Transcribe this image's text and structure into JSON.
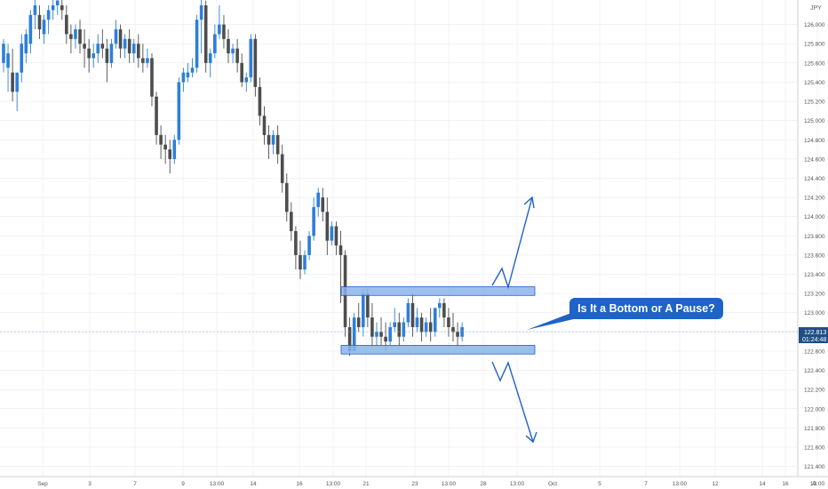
{
  "currency": "JPY",
  "callout": {
    "text": "Is It a Bottom or A Pause?"
  },
  "price_tag": {
    "price": "122.813",
    "countdown": "01:24:48"
  },
  "footer": {
    "axis_label": "A"
  },
  "colors": {
    "up": "#2d7fd8",
    "down": "#4d4d4d",
    "band_fill": "#8cb4ea",
    "band_border": "#1e5fc8",
    "arrow": "#1e63c6",
    "axis_text": "#555555",
    "grid": "#e6e6e6",
    "tag_bg": "#1f4f86"
  },
  "chart_data": {
    "type": "candlestick",
    "title": "",
    "ylim": [
      121.35,
      126.2
    ],
    "y_ticks": [
      "126.000",
      "125.800",
      "125.600",
      "125.400",
      "125.200",
      "125.000",
      "124.800",
      "124.600",
      "124.400",
      "124.200",
      "124.000",
      "123.800",
      "123.600",
      "123.400",
      "123.200",
      "123.000",
      "122.800",
      "122.600",
      "122.400",
      "122.200",
      "122.000",
      "121.800",
      "121.600",
      "121.400"
    ],
    "x_ticks": [
      "Sep",
      "3",
      "7",
      "9",
      "13:00",
      "14",
      "16",
      "13:00",
      "21",
      "23",
      "13:00",
      "28",
      "13:00",
      "Oct",
      "5",
      "7",
      "13:00",
      "12",
      "14",
      "16",
      "13:00"
    ],
    "candles": [
      [
        125.6,
        125.85,
        125.8,
        125.5
      ],
      [
        125.55,
        125.8,
        125.7,
        125.3
      ],
      [
        125.5,
        125.75,
        125.3,
        125.2
      ],
      [
        125.3,
        125.4,
        125.5,
        125.1
      ],
      [
        125.5,
        125.9,
        125.8,
        125.4
      ],
      [
        125.7,
        125.95,
        125.9,
        125.6
      ],
      [
        125.8,
        126.15,
        126.1,
        125.7
      ],
      [
        126.1,
        126.3,
        126.2,
        125.95
      ],
      [
        126.1,
        126.2,
        125.95,
        125.85
      ],
      [
        125.9,
        126.1,
        126.05,
        125.8
      ],
      [
        126.05,
        126.2,
        126.15,
        125.9
      ],
      [
        126.15,
        126.3,
        126.2,
        126.05
      ],
      [
        126.2,
        126.3,
        126.25,
        126.1
      ],
      [
        126.2,
        126.3,
        126.15,
        126.05
      ],
      [
        126.1,
        126.2,
        125.9,
        125.8
      ],
      [
        125.9,
        126.0,
        125.85,
        125.7
      ],
      [
        125.85,
        126.0,
        125.95,
        125.75
      ],
      [
        125.95,
        126.05,
        125.8,
        125.7
      ],
      [
        125.8,
        125.95,
        125.75,
        125.55
      ],
      [
        125.75,
        125.85,
        125.65,
        125.5
      ],
      [
        125.65,
        125.8,
        125.7,
        125.55
      ],
      [
        125.7,
        125.9,
        125.8,
        125.6
      ],
      [
        125.8,
        125.95,
        125.75,
        125.65
      ],
      [
        125.75,
        125.85,
        125.6,
        125.4
      ],
      [
        125.6,
        125.85,
        125.8,
        125.55
      ],
      [
        125.8,
        126.05,
        125.95,
        125.75
      ],
      [
        125.95,
        126.0,
        125.75,
        125.65
      ],
      [
        125.75,
        125.9,
        125.85,
        125.65
      ],
      [
        125.85,
        125.95,
        125.7,
        125.6
      ],
      [
        125.7,
        125.85,
        125.8,
        125.6
      ],
      [
        125.8,
        125.9,
        125.65,
        125.55
      ],
      [
        125.65,
        125.8,
        125.6,
        125.5
      ],
      [
        125.6,
        125.75,
        125.65,
        125.55
      ],
      [
        125.65,
        125.7,
        125.25,
        125.15
      ],
      [
        125.25,
        125.3,
        124.85,
        124.75
      ],
      [
        124.85,
        124.95,
        124.75,
        124.6
      ],
      [
        124.75,
        124.85,
        124.7,
        124.55
      ],
      [
        124.7,
        124.8,
        124.6,
        124.45
      ],
      [
        124.6,
        124.85,
        124.8,
        124.55
      ],
      [
        124.8,
        125.45,
        125.4,
        124.75
      ],
      [
        125.4,
        125.55,
        125.5,
        125.3
      ],
      [
        125.45,
        125.6,
        125.5,
        125.4
      ],
      [
        125.5,
        125.65,
        125.55,
        125.45
      ],
      [
        125.55,
        126.1,
        126.05,
        125.5
      ],
      [
        126.05,
        126.3,
        126.2,
        125.7
      ],
      [
        126.2,
        126.25,
        125.6,
        125.5
      ],
      [
        125.6,
        125.75,
        125.7,
        125.45
      ],
      [
        125.7,
        126.0,
        125.9,
        125.65
      ],
      [
        125.9,
        126.2,
        126.0,
        125.85
      ],
      [
        126.0,
        126.1,
        125.85,
        125.75
      ],
      [
        125.85,
        125.95,
        125.7,
        125.6
      ],
      [
        125.7,
        125.8,
        125.75,
        125.6
      ],
      [
        125.75,
        125.85,
        125.6,
        125.5
      ],
      [
        125.6,
        125.7,
        125.4,
        125.35
      ],
      [
        125.4,
        125.5,
        125.45,
        125.3
      ],
      [
        125.45,
        125.9,
        125.85,
        125.4
      ],
      [
        125.85,
        125.9,
        125.35,
        125.25
      ],
      [
        125.35,
        125.45,
        125.05,
        124.95
      ],
      [
        125.05,
        125.15,
        124.85,
        124.75
      ],
      [
        124.85,
        124.95,
        124.75,
        124.6
      ],
      [
        124.75,
        124.9,
        124.85,
        124.65
      ],
      [
        124.85,
        124.95,
        124.65,
        124.55
      ],
      [
        124.65,
        124.75,
        124.35,
        124.25
      ],
      [
        124.35,
        124.45,
        124.05,
        123.95
      ],
      [
        124.05,
        124.15,
        123.85,
        123.75
      ],
      [
        123.85,
        123.9,
        123.6,
        123.45
      ],
      [
        123.6,
        123.75,
        123.45,
        123.35
      ],
      [
        123.45,
        123.65,
        123.6,
        123.4
      ],
      [
        123.6,
        123.85,
        123.8,
        123.55
      ],
      [
        123.8,
        124.2,
        124.1,
        123.75
      ],
      [
        124.1,
        124.3,
        124.25,
        124.0
      ],
      [
        124.2,
        124.3,
        124.05,
        123.95
      ],
      [
        124.05,
        124.2,
        123.75,
        123.6
      ],
      [
        123.75,
        123.95,
        123.9,
        123.7
      ],
      [
        123.9,
        123.95,
        123.7,
        123.6
      ],
      [
        123.7,
        123.85,
        123.6,
        123.1
      ],
      [
        123.6,
        123.65,
        122.85,
        122.75
      ],
      [
        122.85,
        122.95,
        122.6,
        122.55
      ],
      [
        122.6,
        123.0,
        122.95,
        122.6
      ],
      [
        122.95,
        123.1,
        122.85,
        122.8
      ],
      [
        122.85,
        123.25,
        123.2,
        122.75
      ],
      [
        123.2,
        123.25,
        122.95,
        122.85
      ],
      [
        122.95,
        123.1,
        122.75,
        122.65
      ],
      [
        122.75,
        122.9,
        122.8,
        122.65
      ],
      [
        122.8,
        122.95,
        122.75,
        122.65
      ],
      [
        122.75,
        122.9,
        122.7,
        122.6
      ],
      [
        122.7,
        122.9,
        122.85,
        122.65
      ],
      [
        122.85,
        123.05,
        122.9,
        122.8
      ],
      [
        122.9,
        123.0,
        122.75,
        122.65
      ],
      [
        122.75,
        122.95,
        122.9,
        122.7
      ],
      [
        122.9,
        123.15,
        123.1,
        122.85
      ],
      [
        123.1,
        123.2,
        122.85,
        122.75
      ],
      [
        122.85,
        123.05,
        122.95,
        122.8
      ],
      [
        122.95,
        123.0,
        122.8,
        122.7
      ],
      [
        122.8,
        122.95,
        122.9,
        122.75
      ],
      [
        122.9,
        123.05,
        122.8,
        122.7
      ],
      [
        122.8,
        122.95,
        123.05,
        122.75
      ],
      [
        123.05,
        123.15,
        123.1,
        122.95
      ],
      [
        123.1,
        123.15,
        122.95,
        122.85
      ],
      [
        122.95,
        123.05,
        122.85,
        122.75
      ],
      [
        122.85,
        123.0,
        122.8,
        122.7
      ],
      [
        122.8,
        122.9,
        122.75,
        122.65
      ],
      [
        122.75,
        122.9,
        122.85,
        122.7
      ]
    ],
    "annotations": [
      {
        "type": "range-band",
        "low": 122.57,
        "high": 122.66
      },
      {
        "type": "range-band",
        "high": 123.27,
        "low": 123.18
      }
    ]
  }
}
